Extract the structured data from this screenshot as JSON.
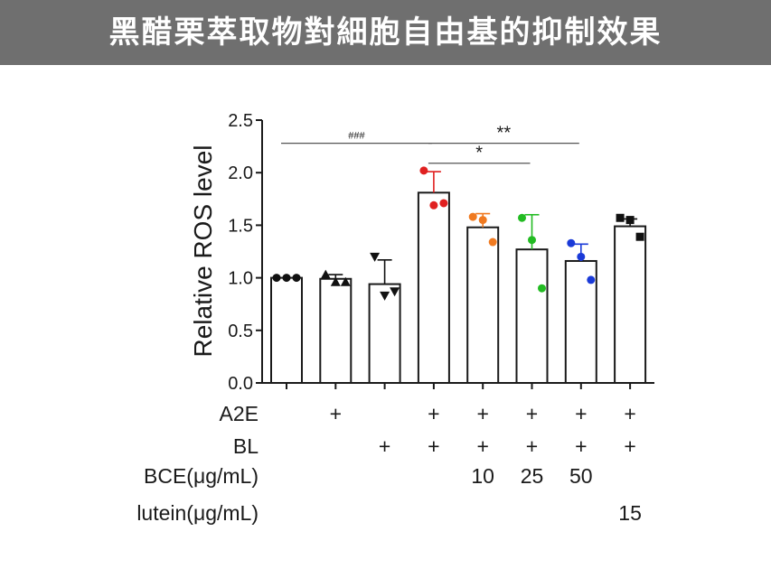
{
  "banner": {
    "title": "黑醋栗萃取物對細胞自由基的抑制效果"
  },
  "colors": {
    "banner_bg": "#6f6f6f",
    "axis": "#1a1a1a"
  },
  "chart_data": {
    "type": "bar",
    "ylabel": "Relative ROS level",
    "xlabel": "",
    "ylim": [
      0,
      2.5
    ],
    "yticks": [
      0.0,
      0.5,
      1.0,
      1.5,
      2.0,
      2.5
    ],
    "ytick_labels": [
      "0.0",
      "0.5",
      "1.0",
      "1.5",
      "2.0",
      "2.5"
    ],
    "groups": [
      {
        "mean": 1.0,
        "err": 0.0,
        "points": [
          1.0,
          1.0,
          1.0
        ],
        "marker": "circle",
        "color": "#111111"
      },
      {
        "mean": 0.99,
        "err": 0.04,
        "points": [
          1.03,
          0.96,
          0.96
        ],
        "marker": "triangle-up",
        "color": "#111111"
      },
      {
        "mean": 0.94,
        "err": 0.23,
        "points": [
          1.2,
          0.83,
          0.87
        ],
        "marker": "triangle-down",
        "color": "#111111"
      },
      {
        "mean": 1.81,
        "err": 0.2,
        "points": [
          2.02,
          1.69,
          1.71
        ],
        "marker": "circle",
        "color": "#e02020"
      },
      {
        "mean": 1.48,
        "err": 0.13,
        "points": [
          1.58,
          1.55,
          1.34
        ],
        "marker": "circle",
        "color": "#f07a20"
      },
      {
        "mean": 1.27,
        "err": 0.33,
        "points": [
          1.57,
          1.36,
          0.9
        ],
        "marker": "circle",
        "color": "#22bb22"
      },
      {
        "mean": 1.16,
        "err": 0.16,
        "points": [
          1.33,
          1.2,
          0.98
        ],
        "marker": "circle",
        "color": "#1a3ad8"
      },
      {
        "mean": 1.49,
        "err": 0.07,
        "points": [
          1.57,
          1.55,
          1.39
        ],
        "marker": "square",
        "color": "#111111"
      }
    ],
    "condition_rows": [
      {
        "label": "A2E",
        "values": [
          "",
          "+",
          "",
          "+",
          "+",
          "+",
          "+",
          "+"
        ]
      },
      {
        "label": "BL",
        "values": [
          "",
          "",
          "+",
          "+",
          "+",
          "+",
          "+",
          "+"
        ]
      },
      {
        "label": "BCE(μg/mL)",
        "values": [
          "",
          "",
          "",
          "",
          "10",
          "25",
          "50",
          ""
        ]
      },
      {
        "label": "lutein(μg/mL)",
        "values": [
          "",
          "",
          "",
          "",
          "",
          "",
          "",
          "15"
        ]
      }
    ],
    "significance": [
      {
        "from": 0,
        "to": 3,
        "y": 2.28,
        "label": "###"
      },
      {
        "from": 3,
        "to": 6,
        "y": 2.28,
        "label": "**"
      },
      {
        "from": 3,
        "to": 5,
        "y": 2.09,
        "label": "*"
      }
    ]
  }
}
